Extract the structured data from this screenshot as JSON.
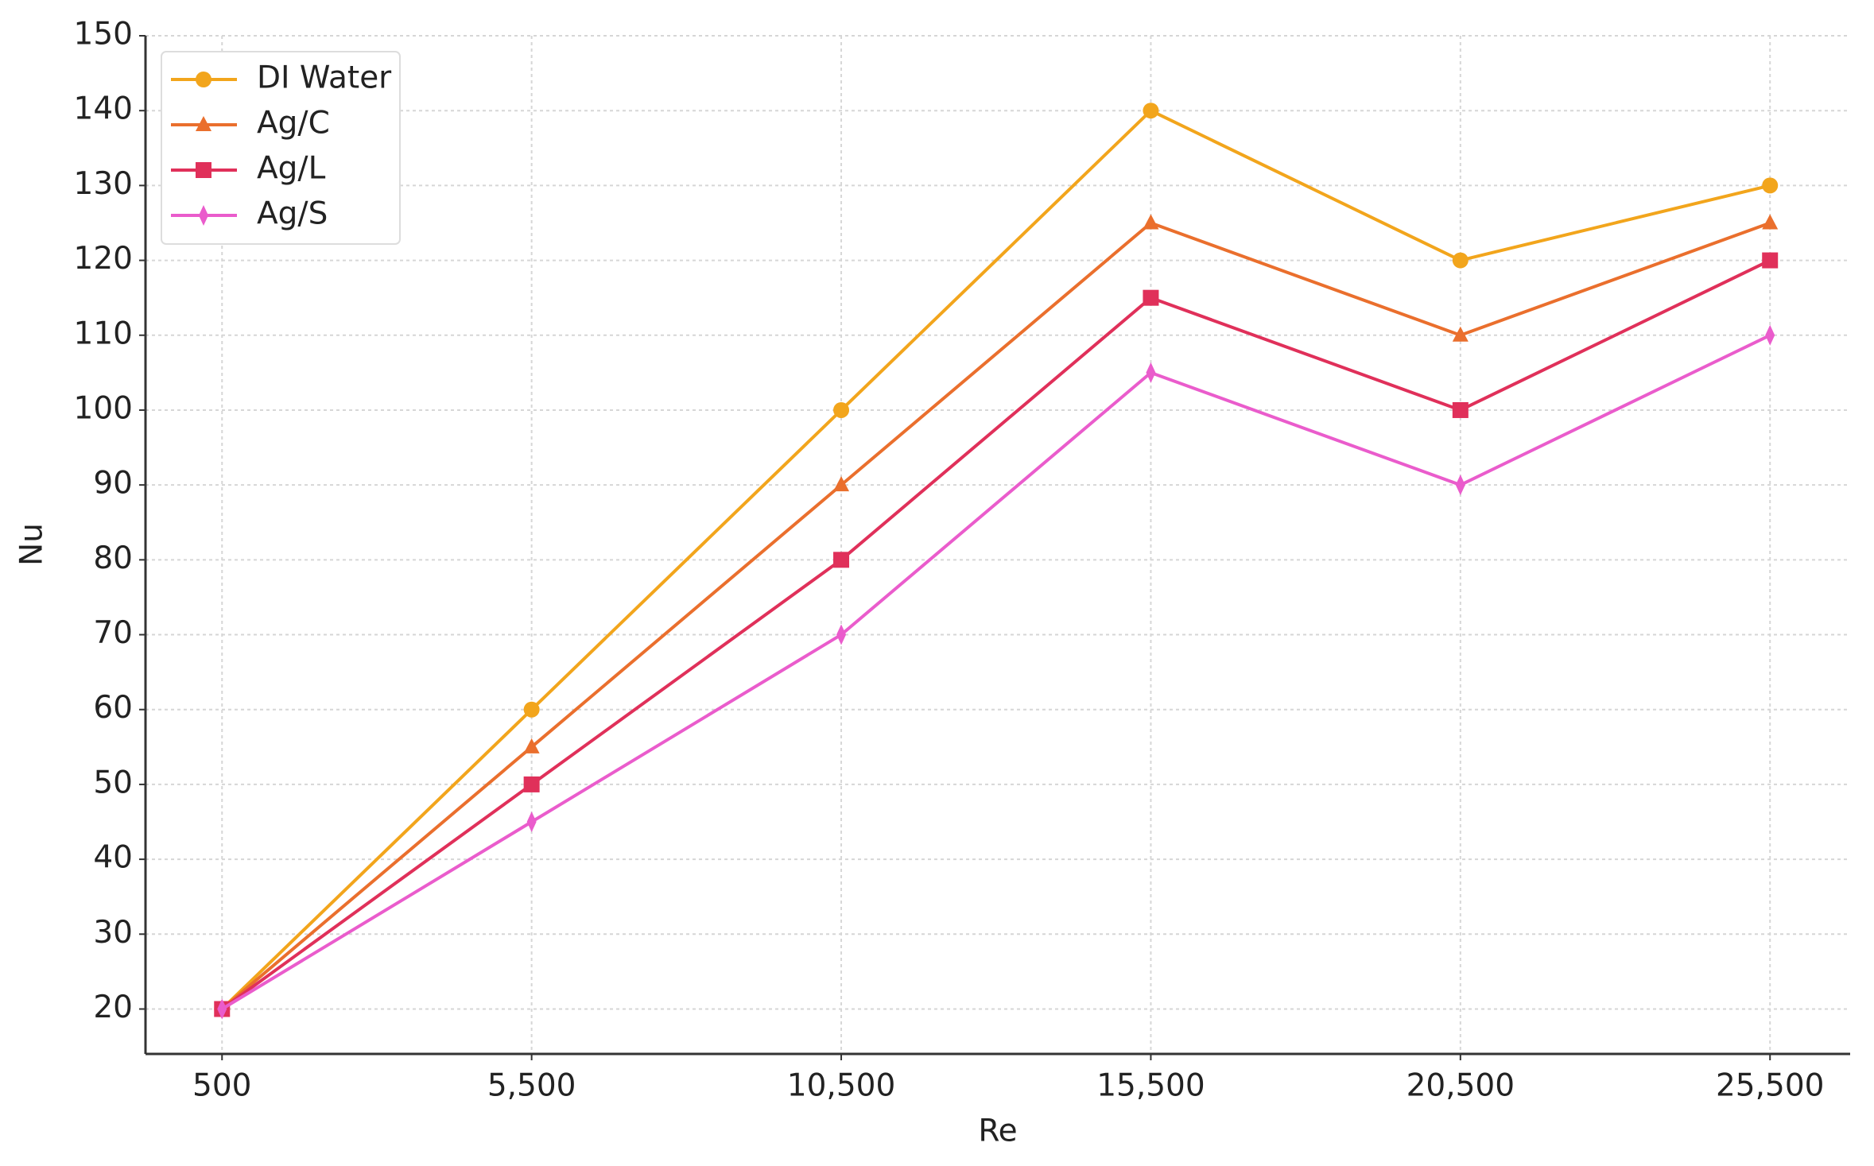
{
  "chart_data": {
    "type": "line",
    "x_label": "Re",
    "y_label": "Nu",
    "x": [
      500,
      5500,
      10500,
      15500,
      20500,
      25500
    ],
    "xlim": [
      -736,
      26794
    ],
    "xticks": [
      500,
      {
        "value": 5500,
        "label": "5,500"
      },
      {
        "value": 10500,
        "label": "10,500"
      },
      {
        "value": 15500,
        "label": "15,500"
      },
      {
        "value": 20500,
        "label": "20,500"
      },
      {
        "value": 25500,
        "label": "25,500"
      }
    ],
    "ylim": [
      14,
      150
    ],
    "yticks": [
      20,
      30,
      40,
      50,
      60,
      70,
      80,
      90,
      100,
      110,
      120,
      130,
      140,
      150
    ],
    "grid": true,
    "legend": "upper left",
    "series": [
      {
        "name": "DI Water",
        "color": "#f2a51c",
        "marker": "circle",
        "values": [
          20,
          60,
          100,
          140,
          120,
          130
        ]
      },
      {
        "name": "Ag/C",
        "color": "#ea6f2d",
        "marker": "triangle",
        "values": [
          20,
          55,
          90,
          125,
          110,
          125
        ]
      },
      {
        "name": "Ag/L",
        "color": "#e0305a",
        "marker": "square",
        "values": [
          20,
          50,
          80,
          115,
          100,
          120
        ]
      },
      {
        "name": "Ag/S",
        "color": "#ea5ccc",
        "marker": "diamond",
        "values": [
          20,
          45,
          70,
          105,
          90,
          110
        ]
      }
    ]
  }
}
